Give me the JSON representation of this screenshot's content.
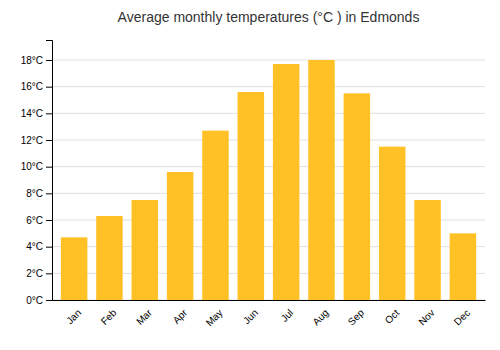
{
  "chart_data": {
    "type": "bar",
    "title": "Average monthly temperatures (°C ) in Edmonds",
    "categories": [
      "Jan",
      "Feb",
      "Mar",
      "Apr",
      "May",
      "Jun",
      "Jul",
      "Aug",
      "Sep",
      "Oct",
      "Nov",
      "Dec"
    ],
    "values": [
      4.7,
      6.3,
      7.5,
      9.6,
      12.7,
      15.6,
      17.7,
      18.0,
      15.5,
      11.5,
      7.5,
      5.0
    ],
    "color": "#FFC125",
    "ylim": [
      0,
      19.5
    ],
    "yticks": [
      {
        "value": 0,
        "label": "0°C"
      },
      {
        "value": 2,
        "label": "2°C"
      },
      {
        "value": 4,
        "label": "4°C"
      },
      {
        "value": 6,
        "label": "6°C"
      },
      {
        "value": 8,
        "label": "8°C"
      },
      {
        "value": 10,
        "label": "10°C"
      },
      {
        "value": 12,
        "label": "12°C"
      },
      {
        "value": 14,
        "label": "14°C"
      },
      {
        "value": 16,
        "label": "16°C"
      },
      {
        "value": 18,
        "label": "18°C"
      }
    ],
    "grid": true
  }
}
